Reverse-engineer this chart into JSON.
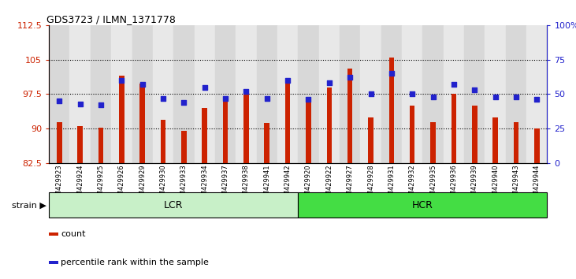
{
  "title": "GDS3723 / ILMN_1371778",
  "samples": [
    "GSM429923",
    "GSM429924",
    "GSM429925",
    "GSM429926",
    "GSM429929",
    "GSM429930",
    "GSM429933",
    "GSM429934",
    "GSM429937",
    "GSM429938",
    "GSM429941",
    "GSM429942",
    "GSM429920",
    "GSM429922",
    "GSM429927",
    "GSM429928",
    "GSM429931",
    "GSM429932",
    "GSM429935",
    "GSM429936",
    "GSM429939",
    "GSM429940",
    "GSM429943",
    "GSM429944"
  ],
  "counts": [
    91.5,
    90.5,
    90.3,
    101.5,
    99.8,
    92.0,
    89.5,
    94.5,
    96.2,
    97.5,
    91.2,
    101.0,
    96.5,
    99.0,
    103.0,
    92.5,
    105.5,
    95.0,
    91.5,
    97.5,
    95.0,
    92.5,
    91.5,
    90.0
  ],
  "percentiles": [
    45,
    43,
    42,
    60,
    57,
    47,
    44,
    55,
    47,
    52,
    47,
    60,
    46,
    58,
    62,
    50,
    65,
    50,
    48,
    57,
    53,
    48,
    48,
    46
  ],
  "group_labels": [
    "LCR",
    "HCR"
  ],
  "group_ranges": [
    [
      0,
      12
    ],
    [
      12,
      24
    ]
  ],
  "group_colors_fill": [
    "#c8f0c8",
    "#44dd44"
  ],
  "bar_color": "#cc2200",
  "dot_color": "#2222cc",
  "ylim_left": [
    82.5,
    112.5
  ],
  "ylim_right": [
    0,
    100
  ],
  "yticks_left": [
    82.5,
    90.0,
    97.5,
    105.0,
    112.5
  ],
  "yticks_right": [
    0,
    25,
    50,
    75,
    100
  ],
  "ytick_labels_left": [
    "82.5",
    "90",
    "97.5",
    "105",
    "112.5"
  ],
  "ytick_labels_right": [
    "0",
    "25",
    "50",
    "75",
    "100%"
  ],
  "hlines": [
    90.0,
    97.5,
    105.0
  ],
  "bar_width": 0.25,
  "col_bg_even": "#d8d8d8",
  "col_bg_odd": "#e8e8e8",
  "legend_count_label": "count",
  "legend_pct_label": "percentile rank within the sample",
  "strain_label": "strain"
}
